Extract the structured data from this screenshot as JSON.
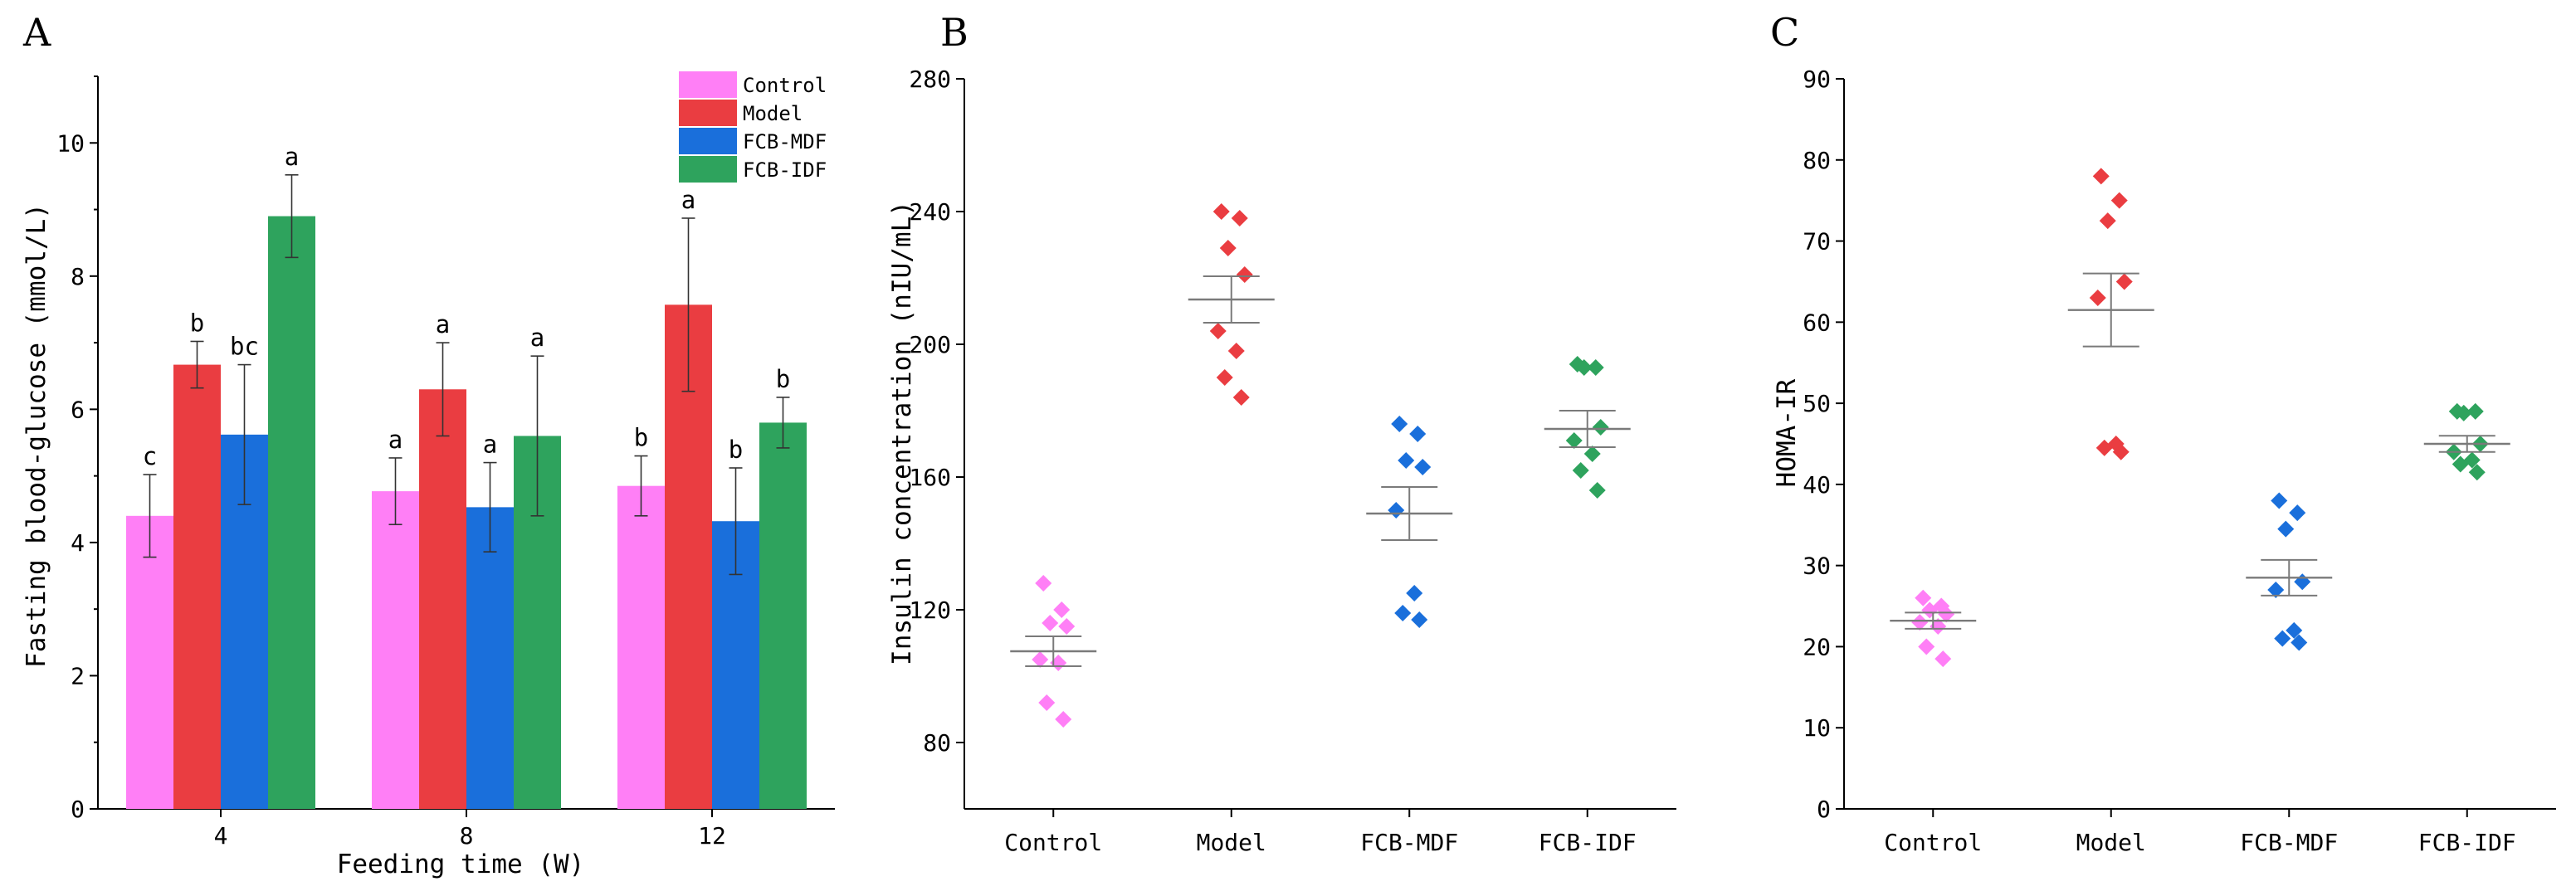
{
  "chart_data": [
    {
      "panel": "A",
      "type": "bar",
      "xlabel": "Feeding time (W)",
      "ylabel": "Fasting blood-glucose (mmol/L)",
      "ylim": [
        0,
        11
      ],
      "yticks": [
        0,
        2,
        4,
        6,
        8,
        10
      ],
      "categories": [
        "4",
        "8",
        "12"
      ],
      "legend_position": "top-right",
      "series": [
        {
          "name": "Control",
          "color": "#ff7ff6",
          "values": [
            4.4,
            4.77,
            4.85
          ],
          "errors": [
            0.62,
            0.5,
            0.45
          ],
          "labels": [
            "c",
            "a",
            "b"
          ]
        },
        {
          "name": "Model",
          "color": "#ea3d41",
          "values": [
            6.67,
            6.3,
            7.57
          ],
          "errors": [
            0.35,
            0.7,
            1.3
          ],
          "labels": [
            "b",
            "a",
            "a"
          ]
        },
        {
          "name": "FCB-MDF",
          "color": "#1a6fdb",
          "values": [
            5.62,
            4.53,
            4.32
          ],
          "errors": [
            1.05,
            0.67,
            0.8
          ],
          "labels": [
            "bc",
            "a",
            "b"
          ]
        },
        {
          "name": "FCB-IDF",
          "color": "#2ea35d",
          "values": [
            8.9,
            5.6,
            5.8
          ],
          "errors": [
            0.62,
            1.2,
            0.38
          ],
          "labels": [
            "a",
            "a",
            "b"
          ]
        }
      ]
    },
    {
      "panel": "B",
      "type": "scatter",
      "xlabel": "",
      "ylabel": "Insulin concentration (nIU/mL)",
      "ylim": [
        60,
        280
      ],
      "yticks": [
        80,
        120,
        160,
        200,
        240,
        280
      ],
      "categories": [
        "Control",
        "Model",
        "FCB-MDF",
        "FCB-IDF"
      ],
      "groups": [
        {
          "name": "Control",
          "color": "#ff7ff6",
          "points": [
            128,
            120,
            116,
            115,
            105,
            104,
            92,
            87
          ],
          "mean": 107.5,
          "sem": 4.5
        },
        {
          "name": "Model",
          "color": "#ea3d41",
          "points": [
            240,
            238,
            229,
            221,
            204,
            198,
            190,
            184
          ],
          "mean": 213.5,
          "sem": 7
        },
        {
          "name": "FCB-MDF",
          "color": "#1a6fdb",
          "points": [
            176,
            173,
            165,
            163,
            150,
            125,
            119,
            117
          ],
          "mean": 149,
          "sem": 8
        },
        {
          "name": "FCB-IDF",
          "color": "#2ea35d",
          "points": [
            194,
            193,
            193,
            175,
            171,
            167,
            162,
            156
          ],
          "mean": 174.5,
          "sem": 5.5
        }
      ]
    },
    {
      "panel": "C",
      "type": "scatter",
      "xlabel": "",
      "ylabel": "HOMA-IR",
      "ylim": [
        0,
        90
      ],
      "yticks": [
        0,
        10,
        20,
        30,
        40,
        50,
        60,
        70,
        80,
        90
      ],
      "categories": [
        "Control",
        "Model",
        "FCB-MDF",
        "FCB-IDF"
      ],
      "groups": [
        {
          "name": "Control",
          "color": "#ff7ff6",
          "points": [
            26,
            25,
            24.5,
            24,
            23,
            22.5,
            20,
            18.5
          ],
          "mean": 23.2,
          "sem": 1
        },
        {
          "name": "Model",
          "color": "#ea3d41",
          "points": [
            78,
            75,
            72.5,
            65,
            63,
            45,
            44.5,
            44
          ],
          "mean": 61.5,
          "sem": 4.5
        },
        {
          "name": "FCB-MDF",
          "color": "#1a6fdb",
          "points": [
            38,
            36.5,
            34.5,
            28,
            27,
            22,
            21,
            20.5
          ],
          "mean": 28.5,
          "sem": 2.2
        },
        {
          "name": "FCB-IDF",
          "color": "#2ea35d",
          "points": [
            49,
            49,
            48.8,
            45,
            44,
            43,
            42.5,
            41.5
          ],
          "mean": 45,
          "sem": 1
        }
      ]
    }
  ]
}
